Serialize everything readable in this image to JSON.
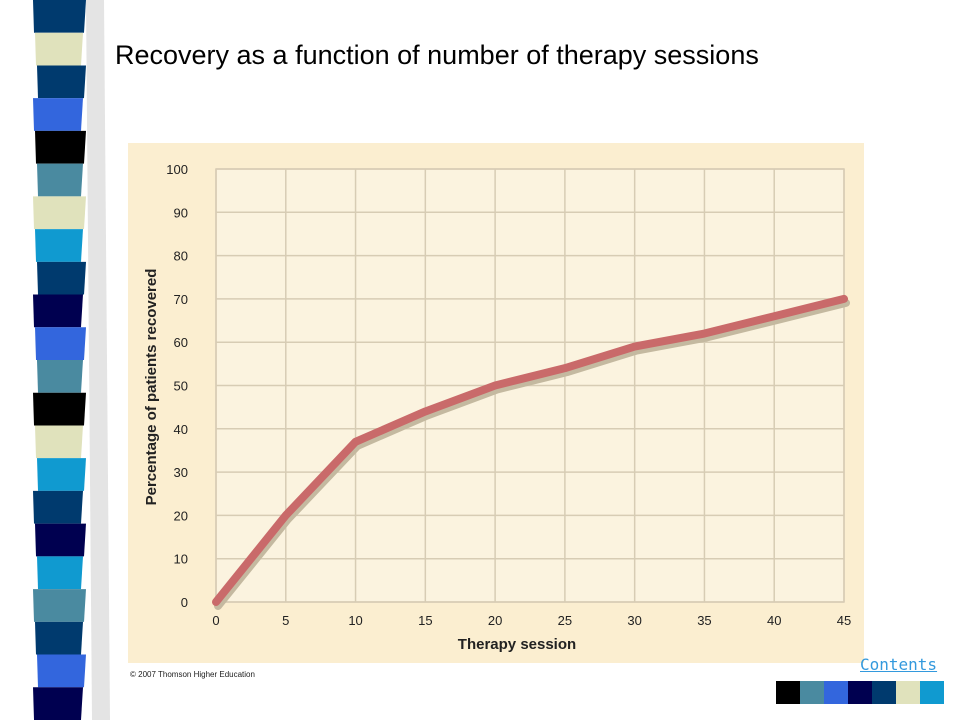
{
  "slide": {
    "title": "Recovery as a function of number of therapy sessions",
    "copyright": "© 2007 Thomson Higher Education",
    "contents_link": "Contents"
  },
  "colors": {
    "chart_background": "#fbeed0",
    "grid": "#d7ccb4",
    "line": "#c96a6a",
    "line_shadow": "#c4b9a0",
    "stripe_palette": [
      "#000000",
      "#4a8aa0",
      "#3366dd",
      "#000050",
      "#003a6e",
      "#e0e2bc",
      "#109ad0"
    ]
  },
  "decor": {
    "stripe_blocks": [
      "#003a6e",
      "#e0e2bc",
      "#003a6e",
      "#3366dd",
      "#000000",
      "#4a8aa0",
      "#e0e2bc",
      "#109ad0",
      "#003a6e",
      "#000050",
      "#3366dd",
      "#4a8aa0",
      "#000000",
      "#e0e2bc",
      "#109ad0",
      "#003a6e",
      "#000050",
      "#109ad0",
      "#4a8aa0",
      "#003a6e",
      "#3366dd",
      "#000050"
    ],
    "bottom_squares": [
      "#000000",
      "#4a8aa0",
      "#3366dd",
      "#000050",
      "#003a6e",
      "#e0e2bc",
      "#109ad0"
    ]
  },
  "chart_data": {
    "type": "line",
    "title": "",
    "xlabel": "Therapy session",
    "ylabel": "Percentage of patients recovered",
    "x": [
      0,
      5,
      10,
      15,
      20,
      25,
      30,
      35,
      40,
      45
    ],
    "series": [
      {
        "values": [
          0,
          20,
          37,
          44,
          50,
          54,
          59,
          62,
          66,
          70
        ]
      }
    ],
    "xlim": [
      0,
      45
    ],
    "ylim": [
      0,
      100
    ],
    "xticks": [
      0,
      5,
      10,
      15,
      20,
      25,
      30,
      35,
      40,
      45
    ],
    "yticks": [
      0,
      10,
      20,
      30,
      40,
      50,
      60,
      70,
      80,
      90,
      100
    ],
    "grid": true,
    "legend": "none"
  }
}
